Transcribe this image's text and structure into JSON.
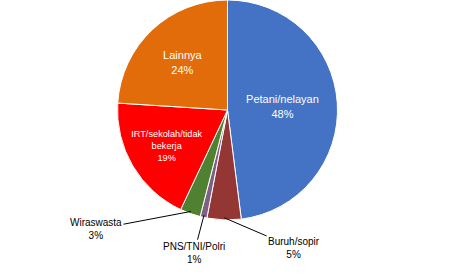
{
  "chart_data": {
    "type": "pie",
    "categories": [
      "Petani/nelayan",
      "Buruh/sopir",
      "PNS/TNI/Polri",
      "Wiraswasta",
      "IRT/sekolah/tidak\nbekerja",
      "Lainnya"
    ],
    "values": [
      48,
      5,
      1,
      3,
      19,
      24
    ],
    "value_labels": [
      "48%",
      "5%",
      "1%",
      "3%",
      "19%",
      "24%"
    ],
    "colors": [
      "#4472C4",
      "#943634",
      "#7F6084",
      "#4F8130",
      "#FF0000",
      "#E36C0A"
    ],
    "data_labels": true
  }
}
